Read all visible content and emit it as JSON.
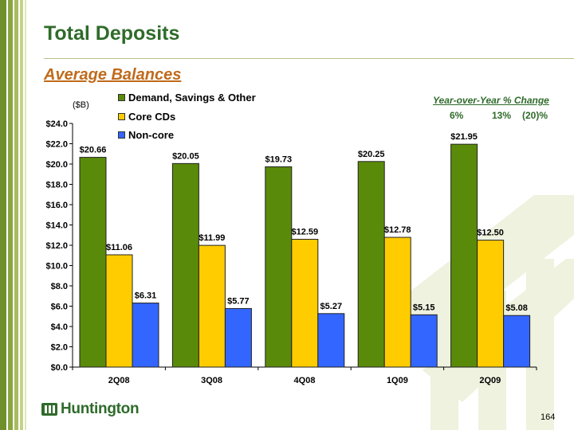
{
  "slide": {
    "title": "Total Deposits",
    "subtitle": "Average Balances",
    "units": "($B)",
    "page_number": "164",
    "logo_text": "Huntington",
    "accent_color": "#2f6b2a",
    "subtitle_color": "#c06a1b"
  },
  "yoy": {
    "title": "Year-over-Year % Change",
    "values": [
      "6%",
      "13%",
      "(20)%"
    ]
  },
  "chart_data": {
    "type": "bar",
    "categories": [
      "2Q08",
      "3Q08",
      "4Q08",
      "1Q09",
      "2Q09"
    ],
    "series": [
      {
        "name": "Demand, Savings & Other",
        "color": "#5a8a0a",
        "values": [
          20.66,
          20.05,
          19.73,
          20.25,
          21.95
        ],
        "labels": [
          "$20.66",
          "$20.05",
          "$19.73",
          "$20.25",
          "$21.95"
        ]
      },
      {
        "name": "Core CDs",
        "color": "#ffcc00",
        "values": [
          11.06,
          11.99,
          12.59,
          12.78,
          12.5
        ],
        "labels": [
          "$11.06",
          "$11.99",
          "$12.59",
          "$12.78",
          "$12.50"
        ]
      },
      {
        "name": "Non-core",
        "color": "#3366ff",
        "values": [
          6.31,
          5.77,
          5.27,
          5.15,
          5.08
        ],
        "labels": [
          "$6.31",
          "$5.77",
          "$5.27",
          "$5.15",
          "$5.08"
        ]
      }
    ],
    "yticks": [
      0,
      2,
      4,
      6,
      8,
      10,
      12,
      14,
      16,
      18,
      20,
      22,
      24
    ],
    "ytick_labels": [
      "$0.0",
      "$2.0",
      "$4.0",
      "$6.0",
      "$8.0",
      "$10.0",
      "$12.0",
      "$14.0",
      "$16.0",
      "$18.0",
      "$20.0",
      "$22.0",
      "$24.0"
    ],
    "ylim": [
      0,
      24
    ],
    "grid": false,
    "legend_position": "top-left"
  }
}
